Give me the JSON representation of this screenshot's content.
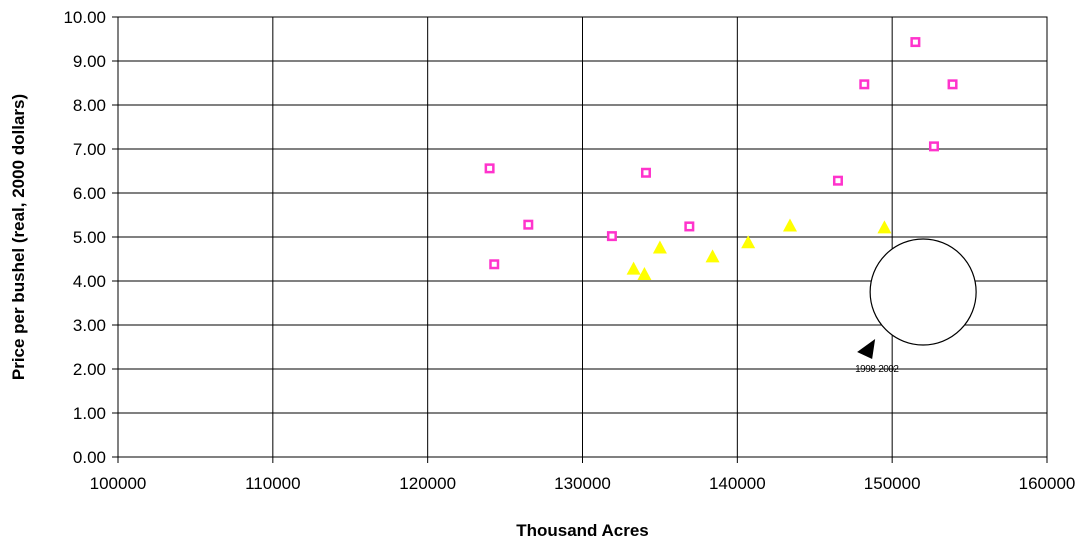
{
  "chart_data": {
    "type": "scatter",
    "title": "",
    "xlabel": "Thousand Acres",
    "ylabel": "Price per bushel (real, 2000 dollars)",
    "xlim": [
      100000,
      160000
    ],
    "ylim": [
      0,
      10
    ],
    "x_ticks": [
      100000,
      110000,
      120000,
      130000,
      140000,
      150000,
      160000
    ],
    "x_tick_labels": [
      "100000",
      "110000",
      "120000",
      "130000",
      "140000",
      "150000",
      "160000"
    ],
    "y_ticks": [
      0,
      1,
      2,
      3,
      4,
      5,
      6,
      7,
      8,
      9,
      10
    ],
    "y_tick_labels": [
      "0.00",
      "1.00",
      "2.00",
      "3.00",
      "4.00",
      "5.00",
      "6.00",
      "7.00",
      "8.00",
      "9.00",
      "10.00"
    ],
    "grid": true,
    "legend": "none",
    "series": [
      {
        "marker": "square",
        "color": "#ff33cc",
        "points": [
          {
            "x": 124000,
            "y": 6.56
          },
          {
            "x": 124300,
            "y": 4.38
          },
          {
            "x": 126500,
            "y": 5.28
          },
          {
            "x": 131900,
            "y": 5.02
          },
          {
            "x": 134100,
            "y": 6.46
          },
          {
            "x": 136900,
            "y": 5.24
          },
          {
            "x": 146500,
            "y": 6.28
          },
          {
            "x": 148200,
            "y": 8.47
          },
          {
            "x": 151500,
            "y": 9.43
          },
          {
            "x": 152700,
            "y": 7.06
          },
          {
            "x": 153900,
            "y": 8.47
          }
        ]
      },
      {
        "marker": "triangle",
        "color": "#ffff00",
        "points": [
          {
            "x": 133300,
            "y": 4.28
          },
          {
            "x": 134000,
            "y": 4.16
          },
          {
            "x": 135000,
            "y": 4.76
          },
          {
            "x": 138400,
            "y": 4.56
          },
          {
            "x": 140700,
            "y": 4.88
          },
          {
            "x": 143400,
            "y": 5.26
          },
          {
            "x": 149500,
            "y": 5.22
          }
        ]
      }
    ],
    "annotation": {
      "text": "1998-2002",
      "shape": "circle",
      "center": {
        "x": 152000,
        "y": 3.75
      },
      "pointer": "arrow toward 1998-2002 points"
    }
  }
}
